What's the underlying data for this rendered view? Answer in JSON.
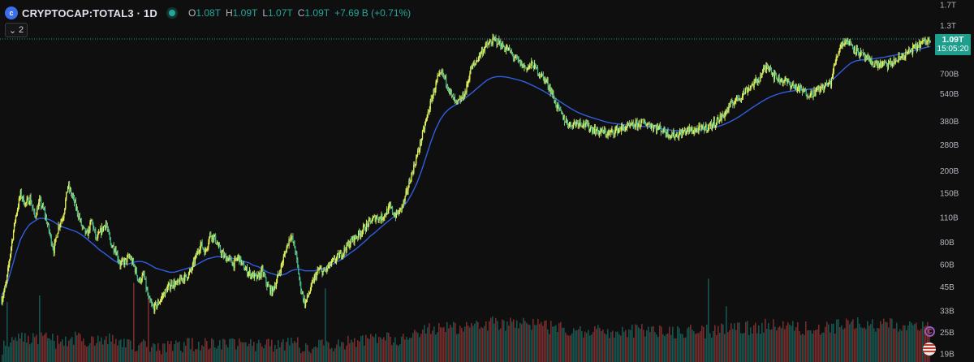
{
  "header": {
    "symbol": "CRYPTOCAP:TOTAL3 · 1D",
    "logo_icon": "cryptocap-logo-icon",
    "status_icon": "market-open-dot-icon",
    "ohlc": {
      "o_label": "O",
      "o": "1.08T",
      "h_label": "H",
      "h": "1.09T",
      "l_label": "L",
      "l": "1.07T",
      "c_label": "C",
      "c": "1.09T",
      "change": "+7.69 B (+0.71%)"
    },
    "indicators_toggle": "2"
  },
  "price_tag": {
    "price": "1.09T",
    "countdown": "15:05:20"
  },
  "colors": {
    "up": "#26a69a",
    "down": "#ef5350",
    "price": "#e6f25a",
    "ma": "#2f5ee0",
    "bg": "#0f0f0f"
  },
  "chart_data": {
    "type": "line",
    "title": "",
    "xlabel": "",
    "ylabel": "",
    "y_scale": "log",
    "ylim": [
      17000000000,
      1800000000000
    ],
    "y_ticks": [
      {
        "label": "1.7T",
        "value": 1700000000000
      },
      {
        "label": "1.3T",
        "value": 1300000000000
      },
      {
        "label": "700B",
        "value": 700000000000
      },
      {
        "label": "540B",
        "value": 540000000000
      },
      {
        "label": "380B",
        "value": 380000000000
      },
      {
        "label": "280B",
        "value": 280000000000
      },
      {
        "label": "200B",
        "value": 200000000000
      },
      {
        "label": "150B",
        "value": 150000000000
      },
      {
        "label": "110B",
        "value": 110000000000
      },
      {
        "label": "80B",
        "value": 80000000000
      },
      {
        "label": "60B",
        "value": 60000000000
      },
      {
        "label": "45B",
        "value": 45000000000
      },
      {
        "label": "33B",
        "value": 33000000000
      },
      {
        "label": "25B",
        "value": 25000000000
      },
      {
        "label": "19B",
        "value": 19000000000
      }
    ],
    "last_price": 1090000000000,
    "series": [
      {
        "values": [
          38,
          47,
          75,
          112,
          148,
          130,
          140,
          110,
          135,
          118,
          92,
          72,
          98,
          112,
          165,
          142,
          118,
          96,
          87,
          105,
          82,
          92,
          102,
          78,
          73,
          60,
          62,
          66,
          58,
          48,
          52,
          38,
          34,
          36,
          40,
          44,
          47,
          46,
          50,
          51,
          55,
          66,
          78,
          70,
          88,
          84,
          72,
          66,
          64,
          60,
          66,
          58,
          54,
          52,
          50,
          55,
          46,
          42,
          48,
          58,
          72,
          88,
          72,
          46,
          36,
          42,
          50,
          56,
          54,
          58,
          62,
          66,
          70,
          76,
          82,
          86,
          92,
          98,
          105,
          110,
          108,
          115,
          125,
          112,
          118,
          135,
          170,
          210,
          260,
          330,
          420,
          530,
          650,
          700,
          620,
          520,
          470,
          500,
          560,
          740,
          800,
          900,
          980,
          1030,
          1080,
          1040,
          980,
          950,
          870,
          820,
          770,
          750,
          790,
          730,
          680,
          630,
          560,
          470,
          420,
          380,
          360,
          370,
          375,
          365,
          350,
          340,
          330,
          330,
          320,
          330,
          340,
          345,
          350,
          355,
          362,
          370,
          368,
          360,
          350,
          345,
          330,
          320,
          315,
          320,
          330,
          338,
          335,
          340,
          345,
          352,
          362,
          380,
          400,
          430,
          470,
          500,
          520,
          560,
          590,
          620,
          660,
          740,
          780,
          680,
          650,
          640,
          620,
          600,
          580,
          560,
          540,
          540,
          560,
          580,
          600,
          620,
          820,
          1000,
          1070,
          1040,
          970,
          910,
          870,
          820,
          800,
          780,
          790,
          780,
          800,
          830,
          870,
          900,
          940,
          980,
          1030,
          1050,
          1080
        ]
      },
      {
        "values": [
          40,
          45,
          55,
          68,
          82,
          92,
          100,
          104,
          108,
          108,
          107,
          104,
          100,
          97,
          95,
          93,
          91,
          88,
          84,
          80,
          76,
          72,
          69,
          66,
          63,
          61,
          60,
          60,
          61,
          62,
          62,
          61,
          59,
          57,
          56,
          55,
          54,
          54,
          55,
          56,
          57,
          58,
          60,
          62,
          64,
          65,
          66,
          66,
          66,
          65,
          64,
          63,
          62,
          61,
          59,
          58,
          56,
          54,
          53,
          52,
          52,
          53,
          55,
          56,
          56,
          55,
          55,
          55,
          56,
          57,
          58,
          60,
          62,
          64,
          67,
          70,
          73,
          77,
          81,
          86,
          90,
          95,
          100,
          105,
          110,
          117,
          125,
          135,
          150,
          170,
          200,
          240,
          290,
          340,
          385,
          420,
          445,
          462,
          480,
          500,
          525,
          550,
          580,
          610,
          640,
          660,
          670,
          672,
          668,
          660,
          650,
          640,
          628,
          612,
          595,
          578,
          560,
          540,
          520,
          500,
          480,
          462,
          445,
          430,
          418,
          408,
          400,
          392,
          385,
          378,
          372,
          368,
          365,
          362,
          360,
          358,
          356,
          354,
          352,
          350,
          347,
          344,
          341,
          338,
          336,
          335,
          334,
          334,
          335,
          336,
          338,
          341,
          345,
          350,
          356,
          364,
          374,
          386,
          400,
          416,
          434,
          452,
          470,
          488,
          505,
          520,
          532,
          542,
          550,
          556,
          560,
          563,
          566,
          570,
          575,
          580,
          590,
          610,
          640,
          680,
          720,
          760,
          800,
          820,
          830,
          835,
          840,
          845,
          852,
          860,
          870,
          880,
          892,
          905,
          918,
          930,
          945,
          960,
          975,
          990
        ]
      }
    ]
  }
}
